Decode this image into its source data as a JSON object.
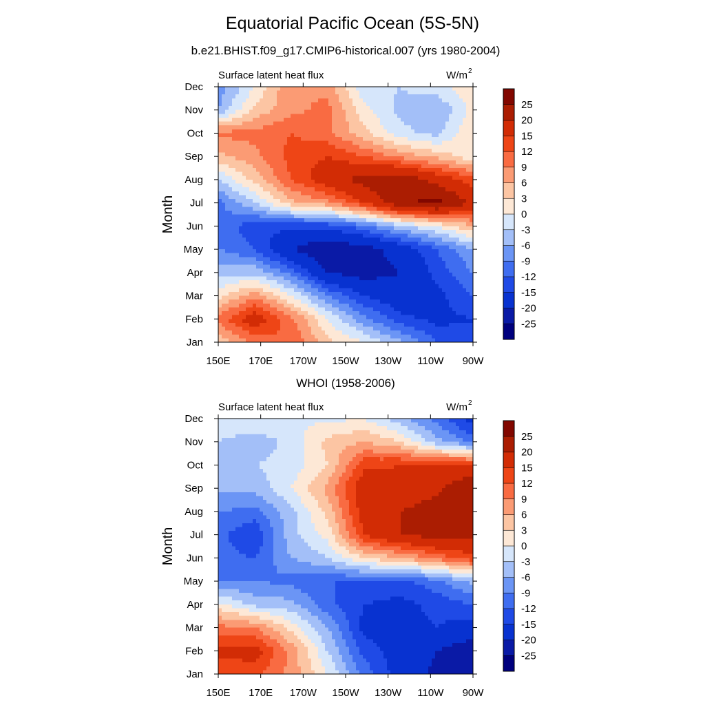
{
  "header": {
    "title": "Equatorial Pacific Ocean (5S-5N)",
    "subtitle": "b.e21.BHIST.f09_g17.CMIP6-historical.007 (yrs 1980-2004)",
    "second_panel_title": "WHOI (1958-2006)"
  },
  "chart_data": [
    {
      "type": "heatmap",
      "title": "b.e21.BHIST.f09_g17.CMIP6-historical.007 (yrs 1980-2004)",
      "left_label": "Surface latent heat flux",
      "units_label": "W/m",
      "units_superscript": "2",
      "ylabel": "Month",
      "x_ticks": [
        "150E",
        "170E",
        "170W",
        "150W",
        "130W",
        "110W",
        "90W"
      ],
      "x_values": [
        150,
        170,
        190,
        210,
        230,
        250,
        270
      ],
      "y_ticks": [
        "Jan",
        "Feb",
        "Mar",
        "Apr",
        "May",
        "Jun",
        "Jul",
        "Aug",
        "Sep",
        "Oct",
        "Nov",
        "Dec"
      ],
      "z_grid": [
        [
          4,
          10,
          12,
          4,
          0,
          -5,
          -12,
          -15
        ],
        [
          10,
          18,
          10,
          0,
          -8,
          -14,
          -16,
          -15
        ],
        [
          2,
          8,
          0,
          -9,
          -15,
          -18,
          -16,
          -12
        ],
        [
          -4,
          -4,
          -10,
          -20,
          -22,
          -20,
          -14,
          -9
        ],
        [
          -9,
          -12,
          -20,
          -24,
          -22,
          -18,
          -12,
          -6
        ],
        [
          -10,
          -14,
          -14,
          -14,
          -10,
          -4,
          0,
          6
        ],
        [
          -10,
          -3,
          5,
          8,
          15,
          24,
          27,
          19
        ],
        [
          -3,
          4,
          12,
          18,
          22,
          24,
          18,
          13
        ],
        [
          5,
          8,
          13,
          15,
          12,
          8,
          5,
          1
        ],
        [
          10,
          10,
          12,
          10,
          4,
          -2,
          -4,
          3
        ],
        [
          -6,
          4,
          8,
          10,
          1,
          -4,
          -6,
          1
        ],
        [
          -8,
          0,
          9,
          8,
          -2,
          -3,
          -1,
          2
        ]
      ]
    },
    {
      "type": "heatmap",
      "title": "WHOI (1958-2006)",
      "left_label": "Surface latent heat flux",
      "units_label": "W/m",
      "units_superscript": "2",
      "ylabel": "Month",
      "x_ticks": [
        "150E",
        "170E",
        "170W",
        "150W",
        "130W",
        "110W",
        "90W"
      ],
      "x_values": [
        150,
        170,
        190,
        210,
        230,
        250,
        270
      ],
      "y_ticks": [
        "Jan",
        "Feb",
        "Mar",
        "Apr",
        "May",
        "Jun",
        "Jul",
        "Aug",
        "Sep",
        "Oct",
        "Nov",
        "Dec"
      ],
      "z_grid": [
        [
          12,
          13,
          8,
          0,
          -10,
          -17,
          -21,
          -25
        ],
        [
          16,
          17,
          8,
          -3,
          -13,
          -17,
          -20,
          -23
        ],
        [
          10,
          9,
          2,
          -6,
          -16,
          -17,
          -15,
          -17
        ],
        [
          1,
          -4,
          -5,
          -11,
          -15,
          -16,
          -14,
          -12
        ],
        [
          -9,
          -9,
          -10,
          -12,
          -12,
          -13,
          -10,
          -5
        ],
        [
          -11,
          -12,
          -6,
          -3,
          3,
          6,
          10,
          14
        ],
        [
          -11,
          -15,
          -4,
          1,
          15,
          20,
          22,
          21
        ],
        [
          -9,
          -10,
          -4,
          4,
          17,
          20,
          22,
          23
        ],
        [
          -5,
          -5,
          0,
          7,
          18,
          17,
          19,
          25
        ],
        [
          -4,
          -3,
          -2,
          3,
          14,
          15,
          15,
          15
        ],
        [
          -3,
          -5,
          -2,
          4,
          6,
          3,
          -5,
          -10
        ],
        [
          0,
          0,
          0,
          -1,
          0,
          -5,
          -10,
          -17
        ]
      ]
    }
  ],
  "colorbar": {
    "labels": [
      "-25",
      "-20",
      "-15",
      "-12",
      "-9",
      "-6",
      "-3",
      "0",
      "3",
      "6",
      "9",
      "12",
      "15",
      "20",
      "25"
    ],
    "levels": [
      -25,
      -20,
      -15,
      -12,
      -9,
      -6,
      -3,
      0,
      3,
      6,
      9,
      12,
      15,
      20,
      25
    ],
    "colors": [
      "#00007e",
      "#0a1aa6",
      "#0832d0",
      "#1f4ae6",
      "#3f6df0",
      "#6b95f5",
      "#a3bff8",
      "#d6e6fb",
      "#fde8d6",
      "#fcc5a3",
      "#fb9b74",
      "#f96b42",
      "#ee4516",
      "#d22c05",
      "#ab1d02",
      "#820700"
    ]
  }
}
